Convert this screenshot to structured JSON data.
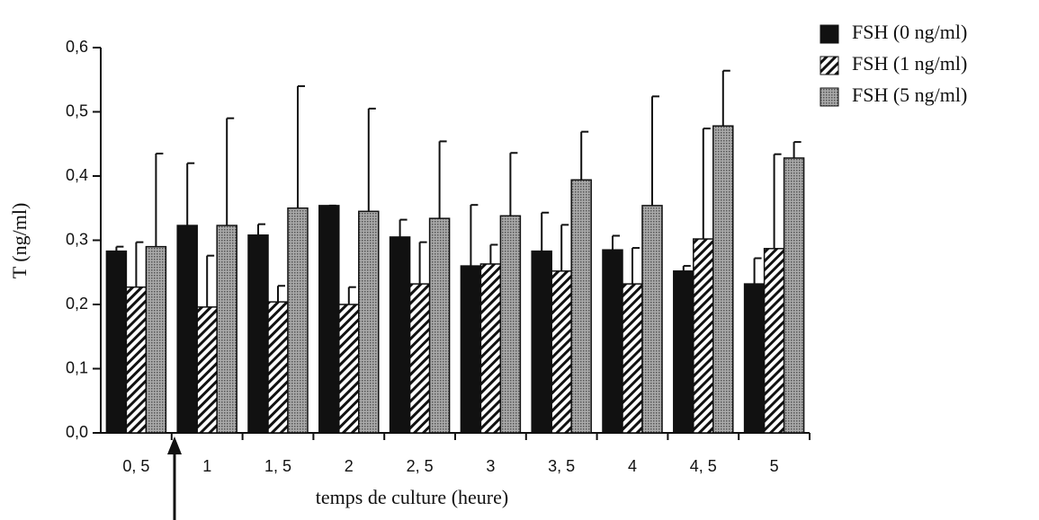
{
  "chart_data": {
    "type": "bar",
    "xlabel": "temps de culture (heure)",
    "ylabel": "T (ng/ml)",
    "categories": [
      "0, 5",
      "1",
      "1, 5",
      "2",
      "2, 5",
      "3",
      "3, 5",
      "4",
      "4, 5",
      "5"
    ],
    "series": [
      {
        "name": "FSH (0 ng/ml)",
        "color": "#111111",
        "pattern": "solid",
        "values": [
          0.283,
          0.323,
          0.308,
          0.354,
          0.305,
          0.26,
          0.283,
          0.285,
          0.252,
          0.232
        ],
        "errors": [
          0.007,
          0.097,
          0.017,
          0,
          0.027,
          0.095,
          0.06,
          0.022,
          0.008,
          0.04
        ]
      },
      {
        "name": "FSH (1 ng/ml)",
        "color": "#111111",
        "pattern": "hatch",
        "values": [
          0.227,
          0.196,
          0.204,
          0.2,
          0.232,
          0.263,
          0.252,
          0.232,
          0.302,
          0.287
        ],
        "errors": [
          0.07,
          0.08,
          0.025,
          0.027,
          0.065,
          0.03,
          0.072,
          0.056,
          0.172,
          0.147
        ]
      },
      {
        "name": "FSH (5 ng/ml)",
        "color": "#888888",
        "pattern": "dots",
        "values": [
          0.29,
          0.323,
          0.35,
          0.345,
          0.334,
          0.338,
          0.394,
          0.354,
          0.478,
          0.428
        ],
        "errors": [
          0.145,
          0.167,
          0.19,
          0.16,
          0.12,
          0.098,
          0.075,
          0.17,
          0.086,
          0.025
        ]
      }
    ],
    "ylim": [
      0,
      0.6
    ],
    "yticks": [
      {
        "value": 0,
        "label": "0,0"
      },
      {
        "value": 0.1,
        "label": "0,1"
      },
      {
        "value": 0.2,
        "label": "0,2"
      },
      {
        "value": 0.3,
        "label": "0,3"
      },
      {
        "value": 0.4,
        "label": "0,4"
      },
      {
        "value": 0.5,
        "label": "0,5"
      },
      {
        "value": 0.6,
        "label": "0,6"
      }
    ],
    "legend": "top-right"
  }
}
